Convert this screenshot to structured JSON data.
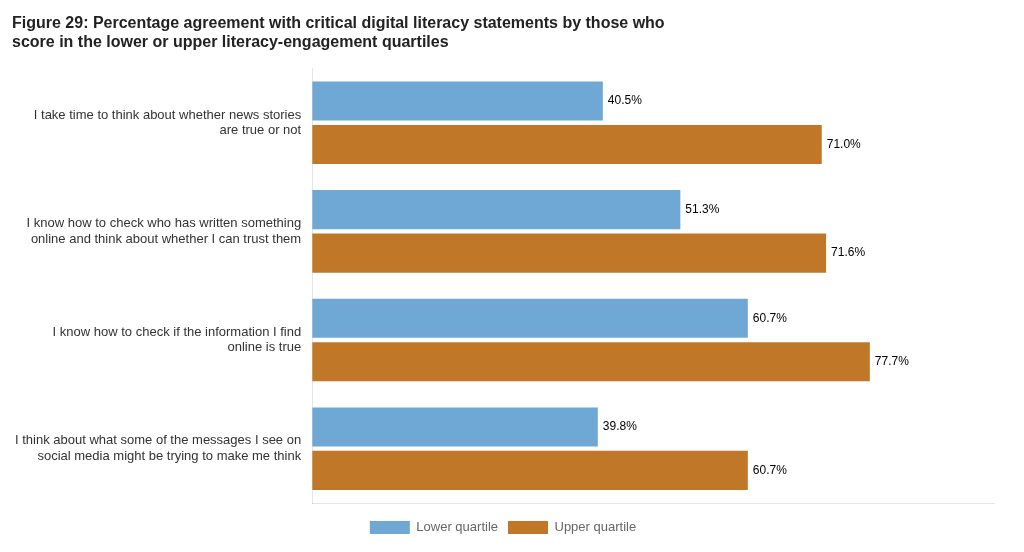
{
  "chart_data": {
    "type": "bar",
    "orientation": "horizontal",
    "title": "Figure 29: Percentage agreement with critical digital literacy statements by those who\nscore in the lower or upper literacy-engagement quartiles",
    "categories": [
      "I take time to think about whether news stories\nare true or not",
      "I know how to check who has written something\nonline and think about whether I can trust them",
      "I know how to check if the information I find\nonline is true",
      "I think about what some of the messages I see on\nsocial media might be trying to make me think"
    ],
    "series": [
      {
        "name": "Lower quartile",
        "color": "#6fa8d4",
        "values": [
          40.5,
          51.3,
          60.7,
          39.8
        ],
        "value_labels": [
          "40.5%",
          "51.3%",
          "60.7%",
          "39.8%"
        ]
      },
      {
        "name": "Upper quartile",
        "color": "#c07828",
        "values": [
          71.0,
          71.6,
          77.7,
          60.7
        ],
        "value_labels": [
          "71.0%",
          "71.6%",
          "77.7%",
          "60.7%"
        ]
      }
    ],
    "xlim": [
      0,
      95
    ],
    "xticks": [],
    "grid": false,
    "legend": "bottom",
    "data_labels": true,
    "tick_labels": "y"
  }
}
